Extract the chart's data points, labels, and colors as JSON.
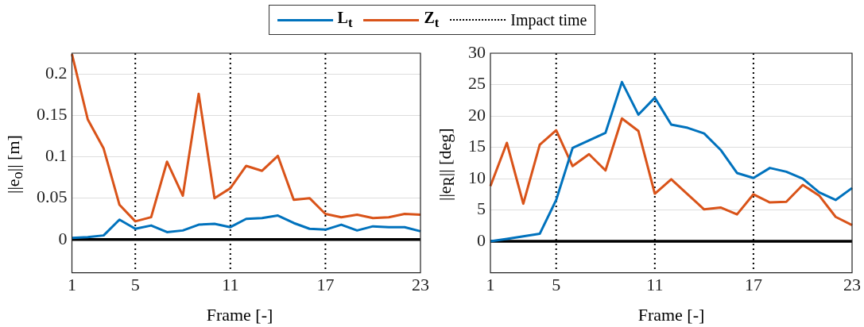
{
  "chart_data": [
    {
      "type": "line",
      "xlabel": "Frame [-]",
      "ylabel": "||e$_{o}$|| [m]",
      "x": [
        1,
        2,
        3,
        4,
        5,
        6,
        7,
        8,
        9,
        10,
        11,
        12,
        13,
        14,
        15,
        16,
        17,
        18,
        19,
        20,
        21,
        22,
        23
      ],
      "series": [
        {
          "name": "L$_{t}$",
          "color": "#0072bd",
          "values": [
            0.002,
            0.003,
            0.005,
            0.024,
            0.013,
            0.017,
            0.009,
            0.011,
            0.018,
            0.019,
            0.015,
            0.025,
            0.026,
            0.029,
            0.02,
            0.013,
            0.012,
            0.018,
            0.011,
            0.016,
            0.015,
            0.015,
            0.01
          ]
        },
        {
          "name": "Z$_{t}$",
          "color": "#d95319",
          "values": [
            0.224,
            0.145,
            0.11,
            0.042,
            0.022,
            0.027,
            0.094,
            0.053,
            0.176,
            0.05,
            0.062,
            0.089,
            0.083,
            0.101,
            0.048,
            0.05,
            0.031,
            0.027,
            0.03,
            0.026,
            0.027,
            0.031,
            0.03
          ]
        }
      ],
      "xlim": [
        1,
        23
      ],
      "xticks": [
        1,
        5,
        11,
        17,
        23
      ],
      "ylim": [
        -0.04,
        0.225
      ],
      "yticks": [
        0,
        0.05,
        0.1,
        0.15,
        0.2
      ],
      "ref_lines": [
        {
          "axis": "x",
          "value": 5,
          "label": "Impact time",
          "color": "#000000",
          "line_style": "dotted"
        },
        {
          "axis": "x",
          "value": 11,
          "color": "#000000",
          "line_style": "dotted"
        },
        {
          "axis": "x",
          "value": 17,
          "color": "#000000",
          "line_style": "dotted"
        },
        {
          "axis": "y",
          "value": 0,
          "color": "#000000",
          "line_style": "solid"
        }
      ],
      "grid": "y",
      "legend": "top",
      "marker": "none",
      "line_style": "solid"
    },
    {
      "type": "line",
      "xlabel": "Frame [-]",
      "ylabel": "||e$_{R}$|| [deg]",
      "x": [
        1,
        2,
        3,
        4,
        5,
        6,
        7,
        8,
        9,
        10,
        11,
        12,
        13,
        14,
        15,
        16,
        17,
        18,
        19,
        20,
        21,
        22,
        23
      ],
      "series": [
        {
          "color": "#0072bd",
          "values": [
            0.0,
            0.4,
            0.8,
            1.2,
            6.6,
            14.9,
            16.1,
            17.3,
            25.4,
            20.2,
            22.9,
            18.6,
            18.1,
            17.2,
            14.6,
            10.9,
            10.1,
            11.7,
            11.1,
            10.0,
            7.8,
            6.6,
            8.5
          ]
        },
        {
          "color": "#d95319",
          "values": [
            8.8,
            15.7,
            6.0,
            15.4,
            17.7,
            12.0,
            13.9,
            11.3,
            19.6,
            17.6,
            7.6,
            9.9,
            7.5,
            5.1,
            5.4,
            4.3,
            7.5,
            6.2,
            6.3,
            9.0,
            7.3,
            3.9,
            2.6
          ]
        }
      ],
      "xlim": [
        1,
        23
      ],
      "xticks": [
        1,
        5,
        11,
        17,
        23
      ],
      "ylim": [
        -5,
        30
      ],
      "yticks": [
        0,
        5,
        10,
        15,
        20,
        25,
        30
      ],
      "ref_lines": [
        {
          "axis": "x",
          "value": 5,
          "color": "#000000",
          "line_style": "dotted"
        },
        {
          "axis": "x",
          "value": 11,
          "color": "#000000",
          "line_style": "dotted"
        },
        {
          "axis": "x",
          "value": 17,
          "color": "#000000",
          "line_style": "dotted"
        },
        {
          "axis": "y",
          "value": 0,
          "color": "#000000",
          "line_style": "solid"
        }
      ],
      "grid": "y",
      "marker": "none",
      "line_style": "solid"
    }
  ]
}
